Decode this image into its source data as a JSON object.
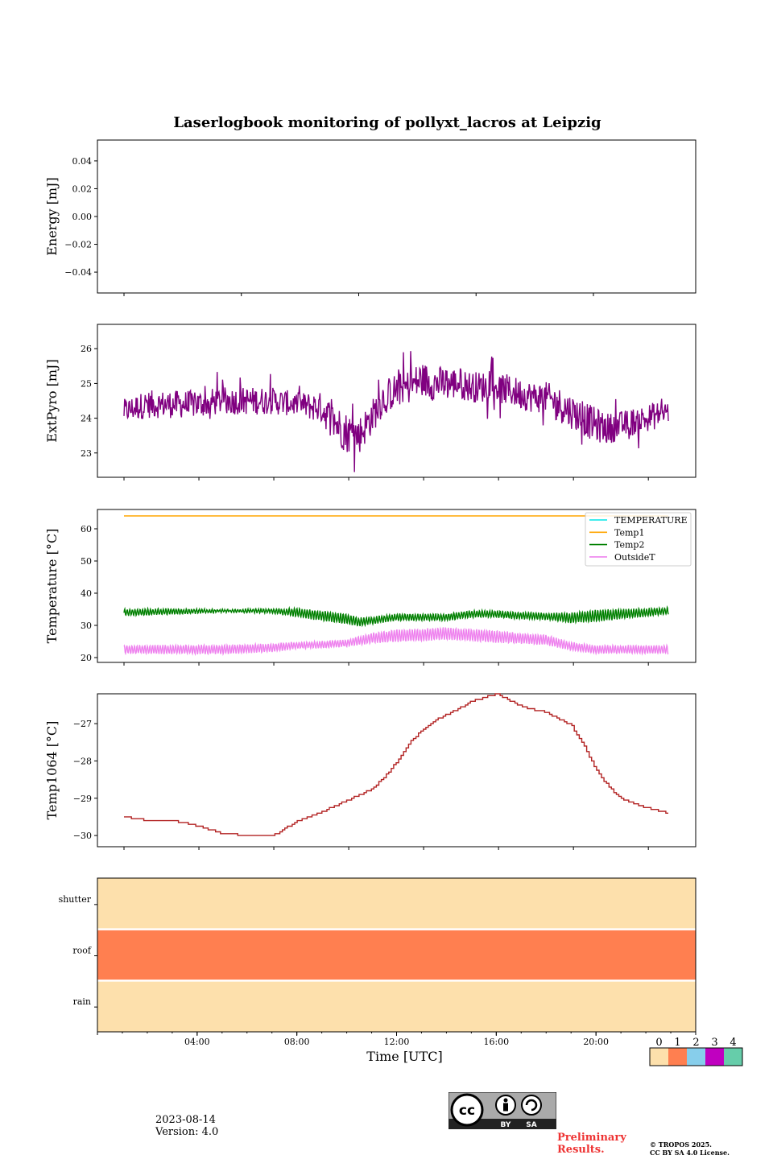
{
  "figure": {
    "title": "Laserlogbook monitoring of pollyxt_lacros at Leipzig",
    "date_label": "2023-08-14",
    "version_label": "Version: 4.0",
    "preliminary_line1": "Preliminary",
    "preliminary_line2": "Results.",
    "copyright_line1": "© TROPOS 2025.",
    "copyright_line2": "CC BY SA 4.0 License.",
    "cc_badge": {
      "by": "BY",
      "sa": "SA",
      "cc": "cc"
    }
  },
  "chart_data": [
    {
      "id": "energy",
      "type": "line",
      "ylabel": "Energy [mJ]",
      "ylim": [
        -0.055,
        0.055
      ],
      "yticks": [
        0.04,
        0.02,
        0.0,
        -0.02,
        -0.04
      ],
      "ytick_labels": [
        "0.04",
        "0.02",
        "0.00",
        "−0.02",
        "−0.04"
      ],
      "series": []
    },
    {
      "id": "extpyro",
      "type": "line",
      "ylabel": "ExtPyro [mJ]",
      "ylim": [
        22.3,
        26.7
      ],
      "yticks": [
        26,
        25,
        24,
        23
      ],
      "ytick_labels": [
        "26",
        "25",
        "24",
        "23"
      ],
      "color": "#800080",
      "x_hours": [
        1.1,
        2,
        3,
        4,
        5,
        6,
        7,
        8,
        9,
        9.5,
        10,
        10.5,
        11,
        11.5,
        12,
        12.5,
        13,
        13.5,
        14,
        14.5,
        15,
        15.5,
        16,
        16.5,
        17,
        17.5,
        18,
        18.5,
        19,
        19.5,
        20,
        20.5,
        21,
        21.5,
        22,
        22.5,
        22.9
      ],
      "y_mean": [
        24.2,
        24.4,
        24.4,
        24.4,
        24.5,
        24.5,
        24.5,
        24.4,
        24.3,
        23.9,
        23.6,
        23.5,
        24.0,
        24.6,
        24.8,
        24.9,
        25.1,
        25.0,
        25.0,
        25.0,
        24.9,
        24.9,
        24.9,
        24.8,
        24.7,
        24.6,
        24.6,
        24.4,
        24.2,
        24.0,
        23.8,
        23.7,
        23.8,
        23.9,
        24.0,
        24.1,
        24.2
      ],
      "y_spread": [
        0.35,
        0.4,
        0.4,
        0.4,
        0.4,
        0.4,
        0.4,
        0.35,
        0.45,
        0.55,
        0.6,
        0.55,
        0.5,
        0.5,
        0.5,
        0.5,
        0.55,
        0.5,
        0.5,
        0.45,
        0.45,
        0.45,
        0.45,
        0.45,
        0.45,
        0.45,
        0.45,
        0.5,
        0.5,
        0.5,
        0.5,
        0.45,
        0.4,
        0.4,
        0.4,
        0.4,
        0.35
      ]
    },
    {
      "id": "temperature",
      "type": "line",
      "ylabel": "Temperature [°C]",
      "ylim": [
        18.5,
        66
      ],
      "yticks": [
        60,
        50,
        40,
        30,
        20
      ],
      "ytick_labels": [
        "60",
        "50",
        "40",
        "30",
        "20"
      ],
      "legend": {
        "placement": "top-right"
      },
      "series": [
        {
          "name": "TEMPERATURE",
          "color": "#00e5e5",
          "values": []
        },
        {
          "name": "Temp1",
          "color": "#ffa500",
          "constant": 64
        },
        {
          "name": "Temp2",
          "color": "#008000",
          "x_hours": [
            1.1,
            3,
            5,
            7,
            8,
            9,
            10,
            10.5,
            11,
            12,
            13,
            14,
            15,
            16,
            17,
            18,
            19,
            20,
            21,
            22,
            22.9
          ],
          "y_mean": [
            34.0,
            34.3,
            34.5,
            34.5,
            34.0,
            33.0,
            32.0,
            31.0,
            31.5,
            32.5,
            32.5,
            32.5,
            33.5,
            33.5,
            33.0,
            32.8,
            32.3,
            33.0,
            33.5,
            34.0,
            34.5
          ],
          "amp": [
            1.0,
            0.8,
            0.4,
            0.6,
            1.2,
            1.5,
            1.5,
            1.3,
            1.0,
            1.0,
            1.0,
            1.0,
            1.0,
            1.0,
            1.0,
            1.0,
            1.5,
            1.7,
            1.5,
            1.2,
            1.0
          ]
        },
        {
          "name": "OutsideT",
          "color": "#ee82ee",
          "x_hours": [
            1.1,
            3,
            5,
            7,
            8,
            9,
            10,
            11,
            12,
            13,
            14,
            15,
            16,
            17,
            18,
            19,
            20,
            21,
            22,
            22.9
          ],
          "y_mean": [
            22.5,
            22.5,
            22.5,
            23.0,
            23.8,
            24.0,
            24.5,
            26.0,
            26.8,
            27.0,
            27.5,
            27.0,
            26.5,
            26.0,
            25.5,
            23.5,
            22.5,
            22.5,
            22.5,
            22.5
          ],
          "amp": [
            1.2,
            1.3,
            1.3,
            1.2,
            1.0,
            1.0,
            1.0,
            1.5,
            1.8,
            1.8,
            1.8,
            1.8,
            1.8,
            1.5,
            1.5,
            1.2,
            1.2,
            1.2,
            1.2,
            1.2
          ]
        }
      ]
    },
    {
      "id": "temp1064",
      "type": "line",
      "ylabel": "Temp1064 [°C]",
      "ylim": [
        -30.3,
        -26.2
      ],
      "yticks": [
        -27,
        -28,
        -29,
        -30
      ],
      "ytick_labels": [
        "−27",
        "−28",
        "−29",
        "−30"
      ],
      "color": "#b22222",
      "x_hours": [
        1.0,
        2.0,
        3.0,
        4.0,
        5.0,
        6.0,
        6.5,
        7.0,
        7.5,
        8.0,
        9.0,
        10.0,
        11.0,
        11.5,
        12.0,
        12.5,
        13.0,
        13.5,
        14.0,
        15.0,
        16.0,
        17.0,
        18.0,
        19.0,
        19.5,
        20.0,
        20.5,
        21.0,
        22.0,
        22.9
      ],
      "y": [
        -29.5,
        -29.6,
        -29.6,
        -29.75,
        -29.95,
        -30.0,
        -30.0,
        -30.0,
        -29.8,
        -29.6,
        -29.35,
        -29.05,
        -28.75,
        -28.4,
        -28.0,
        -27.5,
        -27.15,
        -26.9,
        -26.75,
        -26.4,
        -26.2,
        -26.55,
        -26.7,
        -27.05,
        -27.6,
        -28.25,
        -28.7,
        -29.0,
        -29.25,
        -29.4
      ]
    },
    {
      "id": "status",
      "type": "heatmap",
      "rows": [
        "shutter",
        "roof",
        "rain"
      ],
      "row_values": [
        0,
        1,
        0
      ],
      "colorbar": {
        "ticks": [
          "0",
          "1",
          "2",
          "3",
          "4"
        ],
        "colors": [
          "#fde0ac",
          "#ff7f50",
          "#87ceeb",
          "#c000c0",
          "#66cdaa"
        ]
      }
    }
  ],
  "xaxis": {
    "label": "Time [UTC]",
    "range_hours": [
      0,
      24
    ],
    "ticks_hours": [
      4,
      8,
      12,
      16,
      20
    ],
    "tick_labels": [
      "04:00",
      "08:00",
      "12:00",
      "16:00",
      "20:00"
    ]
  }
}
